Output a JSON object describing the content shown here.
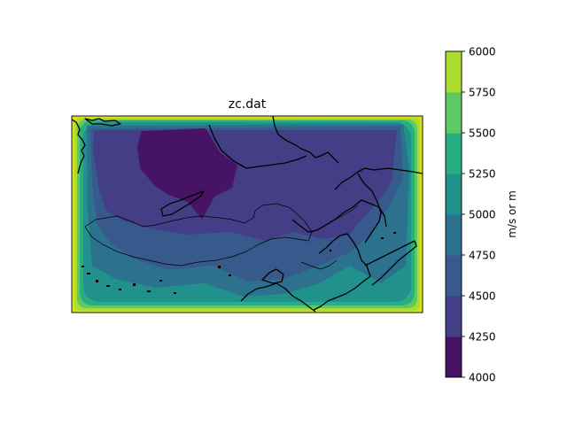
{
  "chart_data": {
    "type": "heatmap",
    "title": "zc.dat",
    "colorbar": {
      "label": "m/s or m",
      "levels": [
        4000,
        4250,
        4500,
        4750,
        5000,
        5250,
        5500,
        5750,
        6000
      ],
      "tick_labels": [
        "4000",
        "4250",
        "4500",
        "4750",
        "5000",
        "5250",
        "5500",
        "5750",
        "6000"
      ],
      "colors": [
        "#471365",
        "#433e85",
        "#38598c",
        "#2c728e",
        "#21918c",
        "#28ae80",
        "#5ec962",
        "#addc30",
        "#d8e219"
      ]
    },
    "field_summary": {
      "minimum_region": "north-central interior, values 4250-4500",
      "interior_range": [
        4250,
        5000
      ],
      "edge_range": [
        5000,
        6000
      ],
      "maximum_corners": [
        "bottom-left",
        "top-right",
        "bottom-right"
      ]
    },
    "grid": false,
    "map_overlay": "coastlines and national borders"
  }
}
